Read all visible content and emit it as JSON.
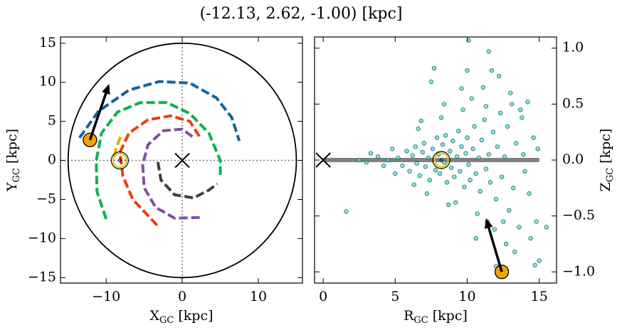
{
  "title": "(-12.13, 2.62, -1.00) [kpc]",
  "chart_data": [
    {
      "type": "orbit",
      "xlabel": [
        "X",
        "GC",
        "[kpc]"
      ],
      "ylabel": [
        "Y",
        "GC",
        "[kpc]"
      ],
      "xlim": [
        -16,
        15.8
      ],
      "ylim": [
        -15.7,
        15.8
      ],
      "xticks": [
        {
          "value": -10,
          "label": "−10"
        },
        0,
        10
      ],
      "yticks": [
        {
          "value": -15,
          "label": "−15"
        },
        {
          "value": -10,
          "label": "−10"
        },
        {
          "value": -5,
          "label": "−5"
        },
        0,
        5,
        10,
        15
      ],
      "boundary_radius": 15,
      "zero_lines": true,
      "series": [
        {
          "color": "#1464a0",
          "x": [
            -13.5,
            -11,
            -7,
            -3,
            1,
            4.5,
            6.5,
            7.5
          ],
          "values": [
            2.9,
            6.3,
            9,
            10.1,
            9.9,
            8,
            5.5,
            2.5
          ]
        },
        {
          "color": "#10b050",
          "x": [
            -10,
            -11.2,
            -11.3,
            -10.6,
            -8.5,
            -5.5,
            -2,
            1,
            3.5,
            5,
            5
          ],
          "values": [
            -7.5,
            -4,
            0,
            3.5,
            6.2,
            7.4,
            7.4,
            6,
            3.5,
            0,
            -2
          ]
        },
        {
          "color": "#f5a300",
          "x": [
            -8.9,
            -8.7,
            -8
          ],
          "values": [
            0.5,
            1.5,
            3.3
          ]
        },
        {
          "color": "#f03c10",
          "x": [
            -3.3,
            -6.5,
            -7.8,
            -8.2,
            -7,
            -4.5,
            -1.5,
            1,
            2.3
          ],
          "values": [
            -8.3,
            -5,
            -2,
            1,
            3.5,
            5.2,
            5.7,
            5,
            3
          ]
        },
        {
          "color": "#8050a0",
          "x": [
            2.3,
            -1,
            -3.5,
            -5,
            -5.2,
            -4.5,
            -2.5,
            0,
            1.4
          ],
          "values": [
            -7.3,
            -7.4,
            -6,
            -3.5,
            -0.5,
            2,
            3.8,
            4,
            3
          ]
        },
        {
          "color": "#404040",
          "x": [
            -3.2,
            -2.8,
            -1,
            1.5,
            3.5,
            4.6
          ],
          "values": [
            -0.2,
            -2.5,
            -4.4,
            -4.8,
            -3.8,
            -3
          ]
        }
      ],
      "markers": [
        {
          "marker": "x",
          "x": 0,
          "y": 0
        },
        {
          "marker": "sun",
          "x": -8.2,
          "y": 0
        },
        {
          "marker": "o",
          "x": -12.13,
          "y": 2.62,
          "color": "#f5a300"
        }
      ],
      "arrow": {
        "x": [
          -12.13,
          -9.6
        ],
        "y": [
          2.62,
          9.8
        ]
      }
    },
    {
      "type": "scatter",
      "xlabel": [
        "R",
        "GC",
        "[kpc]"
      ],
      "ylabel": [
        "Z",
        "GC",
        "[kpc]"
      ],
      "xlim": [
        -0.6,
        16.2
      ],
      "ylim": [
        -1.1,
        1.1
      ],
      "xticks": [
        0,
        5,
        10,
        15
      ],
      "yticks": [
        {
          "value": -1,
          "label": "−1.0"
        },
        {
          "value": -0.5,
          "label": "−0.5"
        },
        {
          "value": 0,
          "label": "0.0"
        },
        {
          "value": 0.5,
          "label": "0.5"
        },
        {
          "value": 1,
          "label": "1.0"
        }
      ],
      "color": "#40e0d0",
      "plane": {
        "x": [
          0,
          15
        ],
        "y": [
          0,
          0
        ],
        "color": "#808080"
      },
      "x": [
        5.2,
        5.5,
        5.8,
        6.0,
        6.2,
        6.4,
        6.5,
        6.7,
        6.9,
        7.0,
        7.1,
        7.3,
        7.4,
        7.6,
        7.8,
        7.9,
        8.0,
        8.1,
        8.3,
        8.4,
        8.5,
        8.6,
        8.8,
        8.9,
        9.0,
        9.1,
        9.3,
        9.4,
        9.5,
        9.6,
        9.8,
        9.9,
        10.0,
        10.1,
        10.2,
        10.4,
        10.5,
        10.6,
        10.8,
        10.9,
        11.0,
        11.2,
        11.3,
        11.5,
        11.6,
        11.8,
        12.0,
        12.1,
        12.3,
        12.4,
        12.6,
        12.8,
        12.9,
        13.1,
        13.2,
        13.4,
        13.6,
        13.8,
        14.0,
        14.2,
        14.4,
        14.6,
        14.8,
        15.0,
        14.7,
        13.3,
        12.7,
        11.9,
        11.4,
        10.7,
        9.2,
        8.7,
        8.2,
        9.7,
        10.3,
        11.1,
        11.7,
        12.2,
        13.0,
        13.7,
        9.6,
        10.0,
        10.1,
        11.5,
        7.7,
        7.5,
        8.4,
        4.5,
        4.2,
        3.8,
        3.3,
        3.0,
        2.5,
        1.6,
        4.8,
        5.0,
        6.6,
        7.2,
        6.3,
        14.9,
        15.5,
        14.3,
        13.9,
        12.5,
        11.3,
        6.8,
        10.6,
        12.0
      ],
      "values": [
        0.02,
        -0.05,
        0.08,
        -0.1,
        0.04,
        0.12,
        -0.03,
        -0.14,
        0.07,
        0.15,
        -0.06,
        0.02,
        -0.18,
        0.1,
        -0.09,
        0.2,
        0.05,
        -0.12,
        0.14,
        -0.02,
        0.22,
        -0.2,
        0.08,
        -0.07,
        0.17,
        -0.15,
        0.03,
        0.26,
        -0.1,
        0.12,
        -0.24,
        0.06,
        0.2,
        -0.04,
        -0.18,
        0.1,
        0.3,
        -0.12,
        0.02,
        -0.28,
        0.18,
        0.36,
        -0.08,
        0.05,
        -0.2,
        0.25,
        -0.35,
        0.12,
        0.42,
        -0.15,
        0.03,
        0.3,
        -0.45,
        0.5,
        -0.25,
        0.15,
        -0.6,
        0.38,
        -0.1,
        0.52,
        -0.7,
        0.2,
        -0.55,
        -0.9,
        -0.94,
        -0.82,
        -0.75,
        -0.62,
        -0.55,
        -0.48,
        -0.38,
        -0.4,
        0.38,
        0.45,
        0.55,
        0.65,
        0.8,
        0.75,
        0.6,
        0.45,
        0.64,
        0.8,
        1.07,
        0.97,
        0.82,
        0.7,
        0.5,
        0.0,
        -0.05,
        0.03,
        0.06,
        -0.02,
        0.0,
        -0.46,
        0.1,
        -0.12,
        0.28,
        -0.3,
        -0.22,
        0.1,
        -0.6,
        -0.3,
        0.05,
        -0.55,
        0.48,
        0.35,
        -0.7,
        -0.95
      ],
      "markers": [
        {
          "marker": "x",
          "x": 0,
          "y": 0
        },
        {
          "marker": "sun",
          "x": 8.2,
          "y": 0
        },
        {
          "marker": "o",
          "x": 12.4,
          "y": -1.0,
          "color": "#f5a300"
        }
      ],
      "arrow": {
        "x": [
          12.4,
          11.3
        ],
        "y": [
          -1.0,
          -0.52
        ]
      }
    }
  ]
}
